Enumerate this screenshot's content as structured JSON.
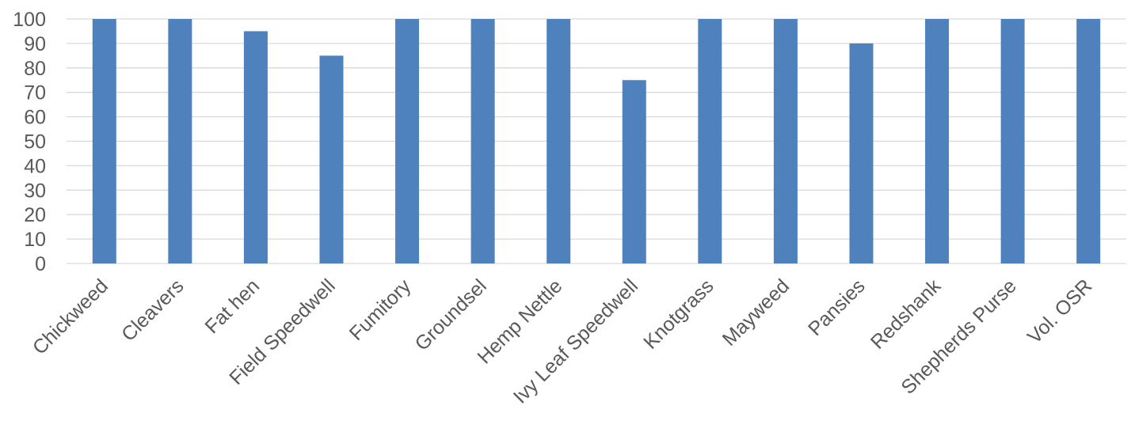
{
  "chart_data": {
    "type": "bar",
    "title": "",
    "xlabel": "",
    "ylabel": "",
    "ylim": [
      0,
      100
    ],
    "yticks": [
      0,
      10,
      20,
      30,
      40,
      50,
      60,
      70,
      80,
      90,
      100
    ],
    "grid": true,
    "legend": "none",
    "bar_color": "#4f81bd",
    "categories": [
      "Chickweed",
      "Cleavers",
      "Fat hen",
      "Field Speedwell",
      "Fumitory",
      "Groundsel",
      "Hemp Nettle",
      "Ivy Leaf Speedwell",
      "Knotgrass",
      "Mayweed",
      "Pansies",
      "Redshank",
      "Shepherds Purse",
      "Vol. OSR"
    ],
    "values": [
      100,
      100,
      95,
      85,
      100,
      100,
      100,
      75,
      100,
      100,
      90,
      100,
      100,
      100
    ]
  }
}
